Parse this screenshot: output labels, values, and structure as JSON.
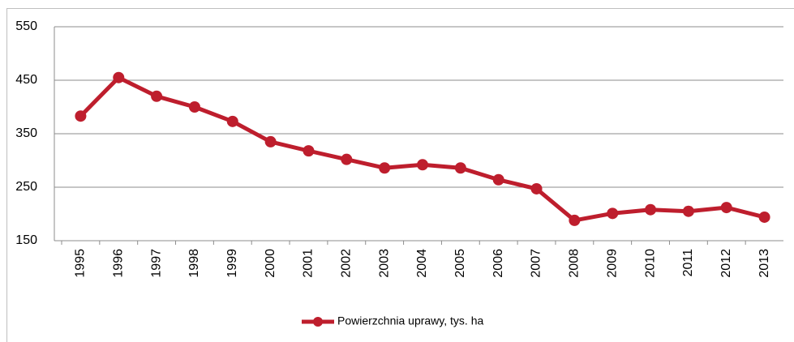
{
  "chart_data": {
    "type": "line",
    "categories": [
      "1995",
      "1996",
      "1997",
      "1998",
      "1999",
      "2000",
      "2001",
      "2002",
      "2003",
      "2004",
      "2005",
      "2006",
      "2007",
      "2008",
      "2009",
      "2010",
      "2011",
      "2012",
      "2013"
    ],
    "series": [
      {
        "name": "Powierzchnia uprawy, tys. ha",
        "color": "#be1e2d",
        "values": [
          383,
          455,
          420,
          400,
          373,
          335,
          318,
          302,
          286,
          292,
          286,
          264,
          247,
          188,
          201,
          208,
          205,
          212,
          194
        ]
      }
    ],
    "ylim": [
      150,
      550
    ],
    "yticks": [
      150,
      250,
      350,
      450,
      550
    ],
    "grid": true,
    "legend": "bottom"
  }
}
